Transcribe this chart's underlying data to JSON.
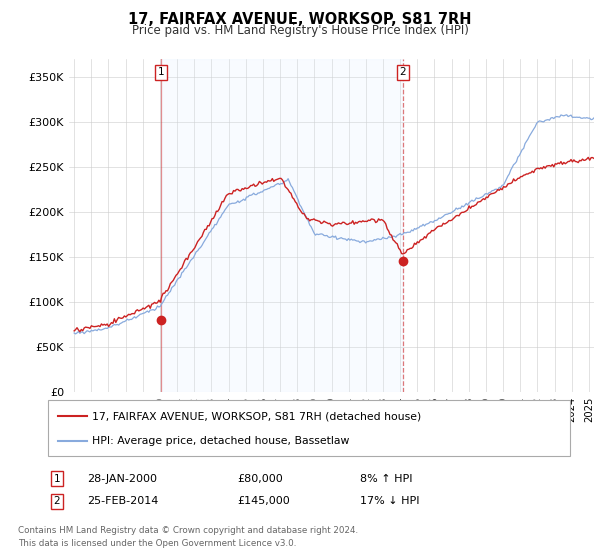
{
  "title": "17, FAIRFAX AVENUE, WORKSOP, S81 7RH",
  "subtitle": "Price paid vs. HM Land Registry's House Price Index (HPI)",
  "ylabel_ticks": [
    "£0",
    "£50K",
    "£100K",
    "£150K",
    "£200K",
    "£250K",
    "£300K",
    "£350K"
  ],
  "ylabel_values": [
    0,
    50000,
    100000,
    150000,
    200000,
    250000,
    300000,
    350000
  ],
  "ylim": [
    0,
    370000
  ],
  "xlim_start": 1994.7,
  "xlim_end": 2025.3,
  "red_color": "#cc2222",
  "blue_color": "#88aadd",
  "shade_color": "#ddeeff",
  "ann1_x": 2000.08,
  "ann1_price": 80000,
  "ann2_x": 2014.15,
  "ann2_price": 145000,
  "legend_line1": "17, FAIRFAX AVENUE, WORKSOP, S81 7RH (detached house)",
  "legend_line2": "HPI: Average price, detached house, Bassetlaw",
  "footer1": "Contains HM Land Registry data © Crown copyright and database right 2024.",
  "footer2": "This data is licensed under the Open Government Licence v3.0.",
  "background_color": "#ffffff",
  "plot_bg_color": "#ffffff"
}
